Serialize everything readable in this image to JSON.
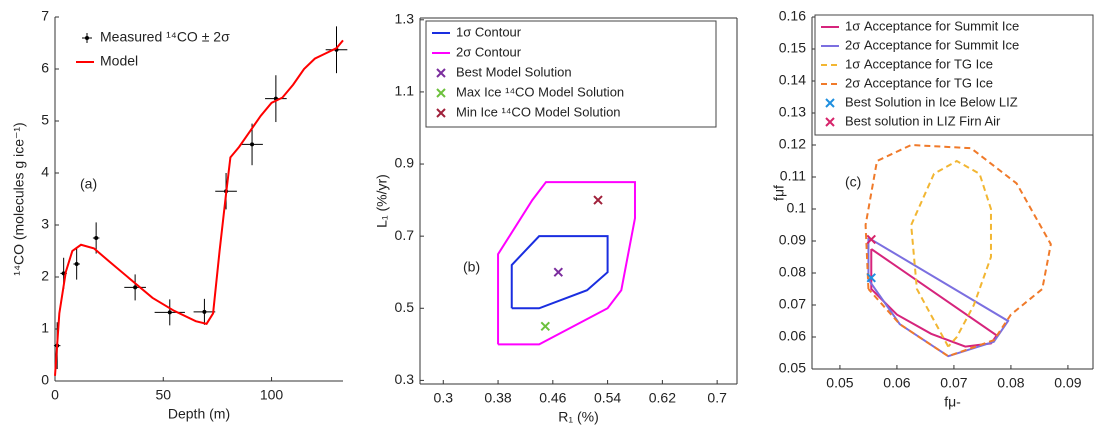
{
  "chart_data": [
    {
      "type": "line",
      "xlabel": "Depth (m)",
      "ylabel": "¹⁴CO (molecules g ice⁻¹)",
      "annotation": "(a)",
      "xlim": [
        0,
        133
      ],
      "ylim": [
        0,
        7
      ],
      "xticks": [
        0,
        50,
        100
      ],
      "yticks": [
        0,
        1,
        2,
        3,
        4,
        5,
        6,
        7
      ],
      "grid": false,
      "box": false,
      "legend": "upper left",
      "legend_box": false,
      "series": [
        {
          "name": "Measured ¹⁴CO ± 2σ",
          "type": "errorbar",
          "color": "#000000",
          "x": [
            1,
            4,
            10,
            19,
            37,
            53,
            69,
            79,
            91,
            102,
            130
          ],
          "values": [
            0.68,
            2.07,
            2.25,
            2.75,
            1.8,
            1.32,
            1.33,
            3.65,
            4.55,
            5.43,
            6.37
          ],
          "xerr": [
            1.5,
            1.5,
            1.5,
            1.5,
            5,
            7,
            5,
            5,
            5,
            5,
            5
          ],
          "yerr": [
            0.45,
            0.3,
            0.3,
            0.3,
            0.25,
            0.25,
            0.25,
            0.35,
            0.4,
            0.45,
            0.45
          ]
        },
        {
          "name": "Model",
          "type": "line",
          "color": "#ff0000",
          "x": [
            0,
            2,
            5,
            8,
            12,
            18,
            25,
            35,
            45,
            55,
            65,
            70,
            73,
            76,
            79,
            81,
            85,
            90,
            95,
            100,
            105,
            110,
            115,
            120,
            125,
            130,
            133
          ],
          "values": [
            0.1,
            1.3,
            2.1,
            2.5,
            2.62,
            2.55,
            2.3,
            1.95,
            1.6,
            1.35,
            1.15,
            1.1,
            1.3,
            2.5,
            3.6,
            4.3,
            4.5,
            4.8,
            5.1,
            5.35,
            5.45,
            5.7,
            6.0,
            6.2,
            6.3,
            6.4,
            6.55
          ]
        }
      ]
    },
    {
      "type": "scatter",
      "xlabel": "R₁ (%)",
      "ylabel": "L₁ (%/yr)",
      "annotation": "(b)",
      "xlim": [
        0.266,
        0.729
      ],
      "ylim": [
        0.29,
        1.305
      ],
      "xticks": [
        0.3,
        0.38,
        0.46,
        0.54,
        0.62,
        0.7
      ],
      "yticks": [
        0.3,
        0.5,
        0.7,
        0.9,
        1.1,
        1.3
      ],
      "grid": false,
      "box": true,
      "legend": "upper left",
      "legend_box": true,
      "series": [
        {
          "name": "1σ Contour",
          "type": "line",
          "color": "#1a2ee0",
          "x": [
            0.4,
            0.44,
            0.51,
            0.54,
            0.54,
            0.44,
            0.4,
            0.4
          ],
          "values": [
            0.5,
            0.5,
            0.55,
            0.6,
            0.7,
            0.7,
            0.62,
            0.5
          ]
        },
        {
          "name": "2σ Contour",
          "type": "line",
          "color": "#ff00ff",
          "x": [
            0.38,
            0.44,
            0.54,
            0.56,
            0.58,
            0.58,
            0.45,
            0.43,
            0.38,
            0.38
          ],
          "values": [
            0.4,
            0.4,
            0.5,
            0.55,
            0.75,
            0.85,
            0.85,
            0.8,
            0.65,
            0.4
          ]
        },
        {
          "name": "Best Model Solution",
          "type": "marker",
          "color": "#7b2d9e",
          "x": [
            0.468
          ],
          "values": [
            0.6
          ]
        },
        {
          "name": "Max Ice ¹⁴CO Model Solution",
          "type": "marker",
          "color": "#6cc13c",
          "x": [
            0.449
          ],
          "values": [
            0.45
          ]
        },
        {
          "name": "Min Ice ¹⁴CO Model Solution",
          "type": "marker",
          "color": "#a0203a",
          "x": [
            0.526
          ],
          "values": [
            0.8
          ]
        }
      ]
    },
    {
      "type": "scatter",
      "xlabel": "fμ-",
      "ylabel": "fμf",
      "annotation": "(c)",
      "xlim": [
        0.0451,
        0.0944
      ],
      "ylim": [
        0.05,
        0.16
      ],
      "xticks": [
        0.05,
        0.06,
        0.07,
        0.08,
        0.09
      ],
      "yticks": [
        0.05,
        0.06,
        0.07,
        0.08,
        0.09,
        0.1,
        0.11,
        0.12,
        0.13,
        0.14,
        0.15,
        0.16
      ],
      "grid": false,
      "box": true,
      "legend": "upper left",
      "legend_box": true,
      "series": [
        {
          "name": "1σ Acceptance for Summit Ice",
          "type": "line",
          "color": "#d6247c",
          "x": [
            0.0555,
            0.0555,
            0.06,
            0.066,
            0.072,
            0.0765,
            0.0775,
            0.0555
          ],
          "values": [
            0.0875,
            0.075,
            0.067,
            0.061,
            0.057,
            0.058,
            0.0605,
            0.0875
          ]
        },
        {
          "name": "2σ Acceptance for Summit Ice",
          "type": "line",
          "color": "#7b6fe0",
          "x": [
            0.055,
            0.0795,
            0.077,
            0.069,
            0.0605,
            0.055,
            0.055
          ],
          "values": [
            0.091,
            0.065,
            0.0585,
            0.054,
            0.064,
            0.078,
            0.091
          ]
        },
        {
          "name": "1σ Acceptance for TG Ice",
          "type": "line",
          "dash": true,
          "color": "#f2b632",
          "x": [
            0.069,
            0.0635,
            0.0625,
            0.0665,
            0.0705,
            0.0745,
            0.0765,
            0.0765,
            0.0735,
            0.0705,
            0.069
          ],
          "values": [
            0.057,
            0.075,
            0.095,
            0.111,
            0.115,
            0.111,
            0.1,
            0.085,
            0.07,
            0.06,
            0.057
          ]
        },
        {
          "name": "2σ Acceptance for TG Ice",
          "type": "line",
          "dash": true,
          "color": "#f07a2a",
          "x": [
            0.055,
            0.0545,
            0.0565,
            0.0625,
            0.073,
            0.081,
            0.087,
            0.0855,
            0.08,
            0.077,
            0.069,
            0.0605,
            0.055
          ],
          "values": [
            0.075,
            0.095,
            0.115,
            0.12,
            0.119,
            0.108,
            0.089,
            0.075,
            0.067,
            0.059,
            0.054,
            0.064,
            0.075
          ]
        },
        {
          "name": "Best Solution in Ice Below LIZ",
          "type": "marker",
          "color": "#1f8fdf",
          "x": [
            0.0555
          ],
          "values": [
            0.0785
          ]
        },
        {
          "name": "Best solution in LIZ Firn Air",
          "type": "marker",
          "color": "#d6246a",
          "x": [
            0.0555
          ],
          "values": [
            0.0905
          ]
        }
      ]
    }
  ]
}
